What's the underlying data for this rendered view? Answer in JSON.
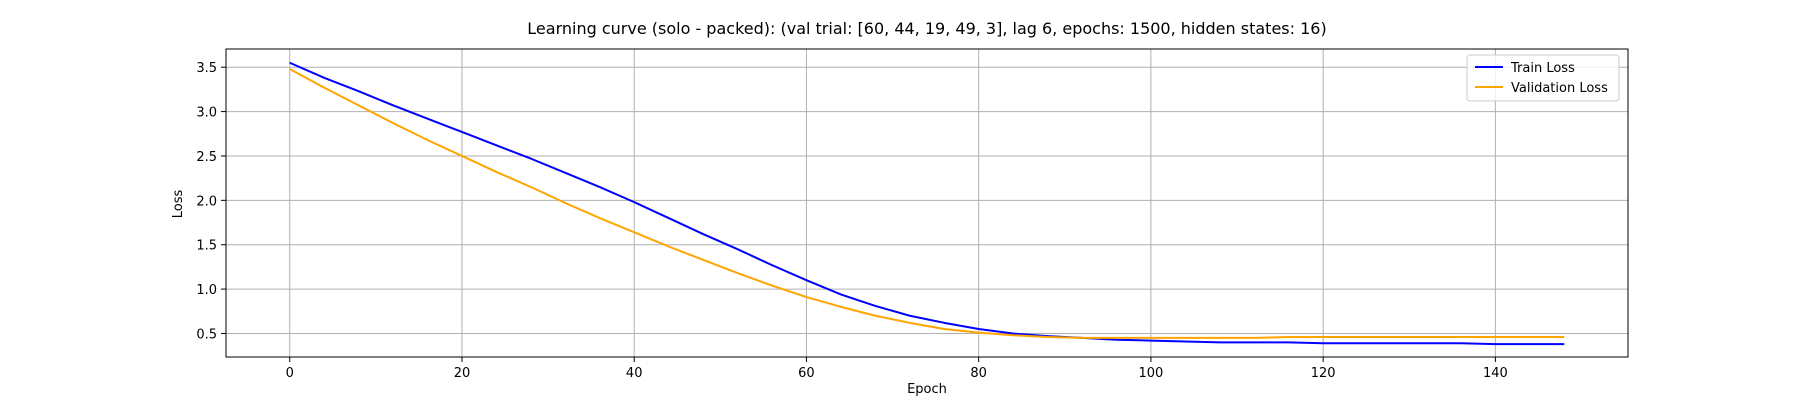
{
  "chart_data": {
    "type": "line",
    "title": "Learning curve (solo - packed): (val trial: [60, 44, 19, 49, 3], lag 6, epochs: 1500, hidden states: 16)",
    "xlabel": "Epoch",
    "ylabel": "Loss",
    "xlim": [
      -7.4,
      155.4
    ],
    "ylim": [
      0.235,
      3.705
    ],
    "xticks": [
      0,
      20,
      40,
      60,
      80,
      100,
      120,
      140
    ],
    "yticks": [
      0.5,
      1.0,
      1.5,
      2.0,
      2.5,
      3.0,
      3.5
    ],
    "xtick_labels": [
      "0",
      "20",
      "40",
      "60",
      "80",
      "100",
      "120",
      "140"
    ],
    "ytick_labels": [
      "0.5",
      "1.0",
      "1.5",
      "2.0",
      "2.5",
      "3.0",
      "3.5"
    ],
    "grid": true,
    "legend_position": "top-right",
    "series": [
      {
        "name": "Train Loss",
        "color": "#0000ff",
        "x": [
          0,
          4,
          8,
          12,
          16,
          20,
          24,
          28,
          32,
          36,
          40,
          44,
          48,
          52,
          56,
          60,
          64,
          68,
          72,
          76,
          80,
          84,
          88,
          92,
          96,
          100,
          104,
          108,
          112,
          116,
          120,
          124,
          128,
          132,
          136,
          140,
          144,
          148
        ],
        "y": [
          3.55,
          3.38,
          3.23,
          3.07,
          2.92,
          2.77,
          2.62,
          2.47,
          2.31,
          2.15,
          1.98,
          1.8,
          1.62,
          1.45,
          1.27,
          1.1,
          0.94,
          0.81,
          0.7,
          0.62,
          0.55,
          0.5,
          0.47,
          0.45,
          0.43,
          0.42,
          0.41,
          0.4,
          0.4,
          0.4,
          0.39,
          0.39,
          0.39,
          0.39,
          0.39,
          0.38,
          0.38,
          0.38
        ]
      },
      {
        "name": "Validation Loss",
        "color": "#ffa500",
        "x": [
          0,
          4,
          8,
          12,
          16,
          20,
          24,
          28,
          32,
          36,
          40,
          44,
          48,
          52,
          56,
          60,
          64,
          68,
          72,
          76,
          80,
          84,
          88,
          92,
          96,
          100,
          104,
          108,
          112,
          116,
          120,
          124,
          128,
          132,
          136,
          140,
          144,
          148
        ],
        "y": [
          3.48,
          3.27,
          3.07,
          2.87,
          2.68,
          2.5,
          2.32,
          2.15,
          1.97,
          1.8,
          1.64,
          1.48,
          1.33,
          1.18,
          1.04,
          0.91,
          0.8,
          0.7,
          0.62,
          0.55,
          0.51,
          0.48,
          0.46,
          0.45,
          0.45,
          0.45,
          0.45,
          0.45,
          0.45,
          0.46,
          0.46,
          0.46,
          0.46,
          0.46,
          0.46,
          0.46,
          0.46,
          0.46
        ]
      }
    ]
  }
}
